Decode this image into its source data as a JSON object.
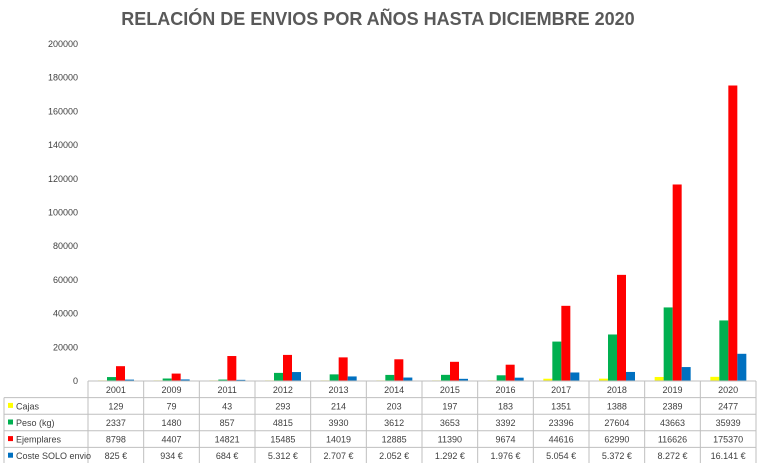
{
  "chart_data": {
    "type": "bar",
    "title": "RELACIÓN DE ENVIOS POR AÑOS HASTA DICIEMBRE 2020",
    "categories": [
      "2001",
      "2009",
      "2011",
      "2012",
      "2013",
      "2014",
      "2015",
      "2016",
      "2017",
      "2018",
      "2019",
      "2020"
    ],
    "ylim": [
      0,
      200000
    ],
    "yticks": [
      "0",
      "20000",
      "40000",
      "60000",
      "80000",
      "100000",
      "120000",
      "140000",
      "160000",
      "180000",
      "200000"
    ],
    "grid": false,
    "legend": "data-table-below",
    "series": [
      {
        "name": "Cajas",
        "color": "#FFFF00",
        "values": [
          129,
          79,
          43,
          293,
          214,
          203,
          197,
          183,
          1351,
          1388,
          2389,
          2477
        ],
        "labels": [
          "129",
          "79",
          "43",
          "293",
          "214",
          "203",
          "197",
          "183",
          "1351",
          "1388",
          "2389",
          "2477"
        ]
      },
      {
        "name": "Peso (kg)",
        "color": "#00B050",
        "values": [
          2337,
          1480,
          857,
          4815,
          3930,
          3612,
          3653,
          3392,
          23396,
          27604,
          43663,
          35939
        ],
        "labels": [
          "2337",
          "1480",
          "857",
          "4815",
          "3930",
          "3612",
          "3653",
          "3392",
          "23396",
          "27604",
          "43663",
          "35939"
        ]
      },
      {
        "name": "Ejemplares",
        "color": "#FF0000",
        "values": [
          8798,
          4407,
          14821,
          15485,
          14019,
          12885,
          11390,
          9674,
          44616,
          62990,
          116626,
          175370
        ],
        "labels": [
          "8798",
          "4407",
          "14821",
          "15485",
          "14019",
          "12885",
          "11390",
          "9674",
          "44616",
          "62990",
          "116626",
          "175370"
        ]
      },
      {
        "name": "Coste SOLO envio",
        "color": "#0070C0",
        "values": [
          825,
          934,
          684,
          5312,
          2707,
          2052,
          1292,
          1976,
          5054,
          5372,
          8272,
          16141
        ],
        "labels": [
          "825 €",
          "934 €",
          "684 €",
          "5.312 €",
          "2.707 €",
          "2.052 €",
          "1.292 €",
          "1.976 €",
          "5.054 €",
          "5.372 €",
          "8.272 €",
          "16.141 €"
        ]
      }
    ]
  }
}
